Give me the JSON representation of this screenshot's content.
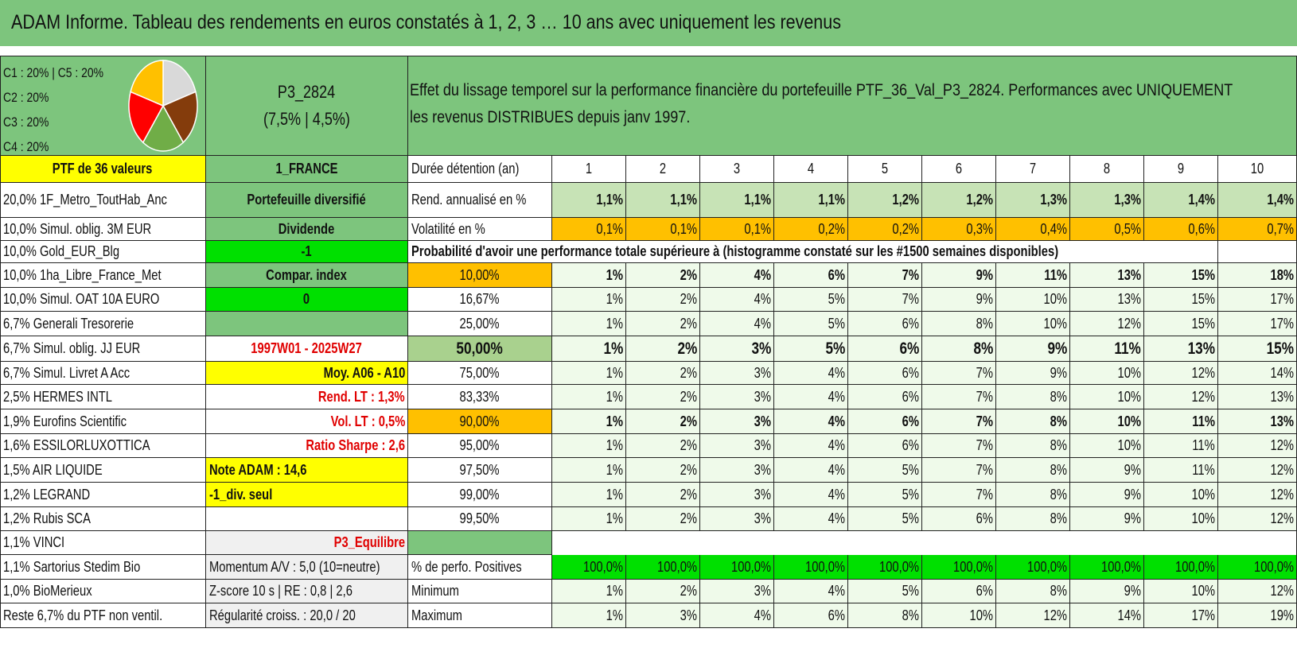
{
  "title": "ADAM Informe. Tableau des rendements en euros constatés à 1, 2, 3 … 10 ans avec uniquement les revenus",
  "pie": {
    "legend": [
      "C1 : 20% | C5 : 20%",
      "C2 : 20%",
      "C3 : 20%",
      "C4 : 20%"
    ],
    "slices": [
      {
        "label": "C1",
        "value": 20,
        "color": "#d9d9d9"
      },
      {
        "label": "C2",
        "value": 20,
        "color": "#843c0c"
      },
      {
        "label": "C3",
        "value": 20,
        "color": "#70ad47"
      },
      {
        "label": "C4",
        "value": 20,
        "color": "#ff0000"
      },
      {
        "label": "C5",
        "value": 20,
        "color": "#ffc000"
      }
    ]
  },
  "profile": {
    "name": "P3_2824",
    "sub": "(7,5% | 4,5%)"
  },
  "description": {
    "line1": "Effet du lissage temporel sur la performance financière du portefeuille PTF_36_Val_P3_2824. Performances avec UNIQUEMENT",
    "line2": "les revenus DISTRIBUES depuis janv 1997."
  },
  "ptf_header": "PTF de 36 valeurs",
  "holdings": [
    "20,0% 1F_Metro_ToutHab_Anc",
    "10,0% Simul. oblig. 3M EUR",
    "10,0% Gold_EUR_Blg",
    "10,0% 1ha_Libre_France_Met",
    "10,0% Simul. OAT 10A EURO",
    "6,7% Generali Tresorerie",
    "6,7% Simul. oblig. JJ EUR",
    "6,7% Simul. Livret A Acc",
    "2,5% HERMES INTL",
    "1,9% Eurofins Scientific",
    "1,6% ESSILORLUXOTTICA",
    "1,5% AIR LIQUIDE",
    "1,2% LEGRAND",
    "1,2% Rubis SCA",
    "1,1% VINCI",
    "1,1% Sartorius Stedim Bio",
    "1,0% BioMerieux",
    "Reste 6,7% du PTF non ventil."
  ],
  "params": {
    "country": "1_FRANCE",
    "portfolio": "Portefeuille diversifié",
    "dividend": "Dividende",
    "dividend_value": "-1",
    "compar": "Compar. index",
    "compar_value": "0",
    "period": "1997W01 - 2025W27",
    "moy": "Moy. A06 - A10",
    "rend_lt": "Rend. LT : 1,3%",
    "vol_lt": "Vol. LT : 0,5%",
    "sharpe": "Ratio Sharpe : 2,6",
    "note": "Note ADAM : 14,6",
    "div_seul": "-1_div. seul",
    "profil": "P3_Equilibre",
    "momentum": "Momentum A/V : 5,0 (10=neutre)",
    "zscore": "Z-score 10 s | RE : 0,8 | 2,6",
    "regularite": "Régularité croiss. : 20,0 / 20"
  },
  "table": {
    "duration_label": "Durée détention (an)",
    "years": [
      "1",
      "2",
      "3",
      "4",
      "5",
      "6",
      "7",
      "8",
      "9",
      "10"
    ],
    "rend_label": "Rend. annualisé en %",
    "rend": [
      "1,1%",
      "1,1%",
      "1,1%",
      "1,1%",
      "1,2%",
      "1,2%",
      "1,3%",
      "1,3%",
      "1,4%",
      "1,4%"
    ],
    "vol_label": "Volatilité en %",
    "vol": [
      "0,1%",
      "0,1%",
      "0,1%",
      "0,2%",
      "0,2%",
      "0,3%",
      "0,4%",
      "0,5%",
      "0,6%",
      "0,7%"
    ],
    "prob_title": "Probabilité d'avoir une performance totale supérieure à (histogramme constaté sur les #1500 semaines disponibles)",
    "prob_rows": [
      {
        "p": "10,00%",
        "v": [
          "1%",
          "2%",
          "4%",
          "6%",
          "7%",
          "9%",
          "11%",
          "13%",
          "15%",
          "18%"
        ]
      },
      {
        "p": "16,67%",
        "v": [
          "1%",
          "2%",
          "4%",
          "5%",
          "7%",
          "9%",
          "10%",
          "13%",
          "15%",
          "17%"
        ]
      },
      {
        "p": "25,00%",
        "v": [
          "1%",
          "2%",
          "4%",
          "5%",
          "6%",
          "8%",
          "10%",
          "12%",
          "15%",
          "17%"
        ]
      },
      {
        "p": "50,00%",
        "v": [
          "1%",
          "2%",
          "3%",
          "5%",
          "6%",
          "8%",
          "9%",
          "11%",
          "13%",
          "15%"
        ]
      },
      {
        "p": "75,00%",
        "v": [
          "1%",
          "2%",
          "3%",
          "4%",
          "6%",
          "7%",
          "9%",
          "10%",
          "12%",
          "14%"
        ]
      },
      {
        "p": "83,33%",
        "v": [
          "1%",
          "2%",
          "3%",
          "4%",
          "6%",
          "7%",
          "8%",
          "10%",
          "12%",
          "13%"
        ]
      },
      {
        "p": "90,00%",
        "v": [
          "1%",
          "2%",
          "3%",
          "4%",
          "6%",
          "7%",
          "8%",
          "10%",
          "11%",
          "13%"
        ]
      },
      {
        "p": "95,00%",
        "v": [
          "1%",
          "2%",
          "3%",
          "4%",
          "6%",
          "7%",
          "8%",
          "10%",
          "11%",
          "12%"
        ]
      },
      {
        "p": "97,50%",
        "v": [
          "1%",
          "2%",
          "3%",
          "4%",
          "5%",
          "7%",
          "8%",
          "9%",
          "11%",
          "12%"
        ]
      },
      {
        "p": "99,00%",
        "v": [
          "1%",
          "2%",
          "3%",
          "4%",
          "5%",
          "7%",
          "8%",
          "9%",
          "10%",
          "12%"
        ]
      },
      {
        "p": "99,50%",
        "v": [
          "1%",
          "2%",
          "3%",
          "4%",
          "5%",
          "6%",
          "8%",
          "9%",
          "10%",
          "12%"
        ]
      }
    ],
    "pos_label": "% de perfo. Positives",
    "pos": [
      "100,0%",
      "100,0%",
      "100,0%",
      "100,0%",
      "100,0%",
      "100,0%",
      "100,0%",
      "100,0%",
      "100,0%",
      "100,0%"
    ],
    "min_label": "Minimum",
    "min": [
      "1%",
      "2%",
      "3%",
      "4%",
      "5%",
      "6%",
      "8%",
      "9%",
      "10%",
      "12%"
    ],
    "max_label": "Maximum",
    "max": [
      "1%",
      "3%",
      "4%",
      "6%",
      "8%",
      "10%",
      "12%",
      "14%",
      "17%",
      "19%"
    ]
  },
  "colors": {
    "header_green": "#7dc57d",
    "rend_green": "#c7e3b6",
    "vol_orange": "#ffc000",
    "positive_green": "#00e000",
    "highlight_yellow": "#ffff00",
    "alert_red": "#e00000"
  }
}
